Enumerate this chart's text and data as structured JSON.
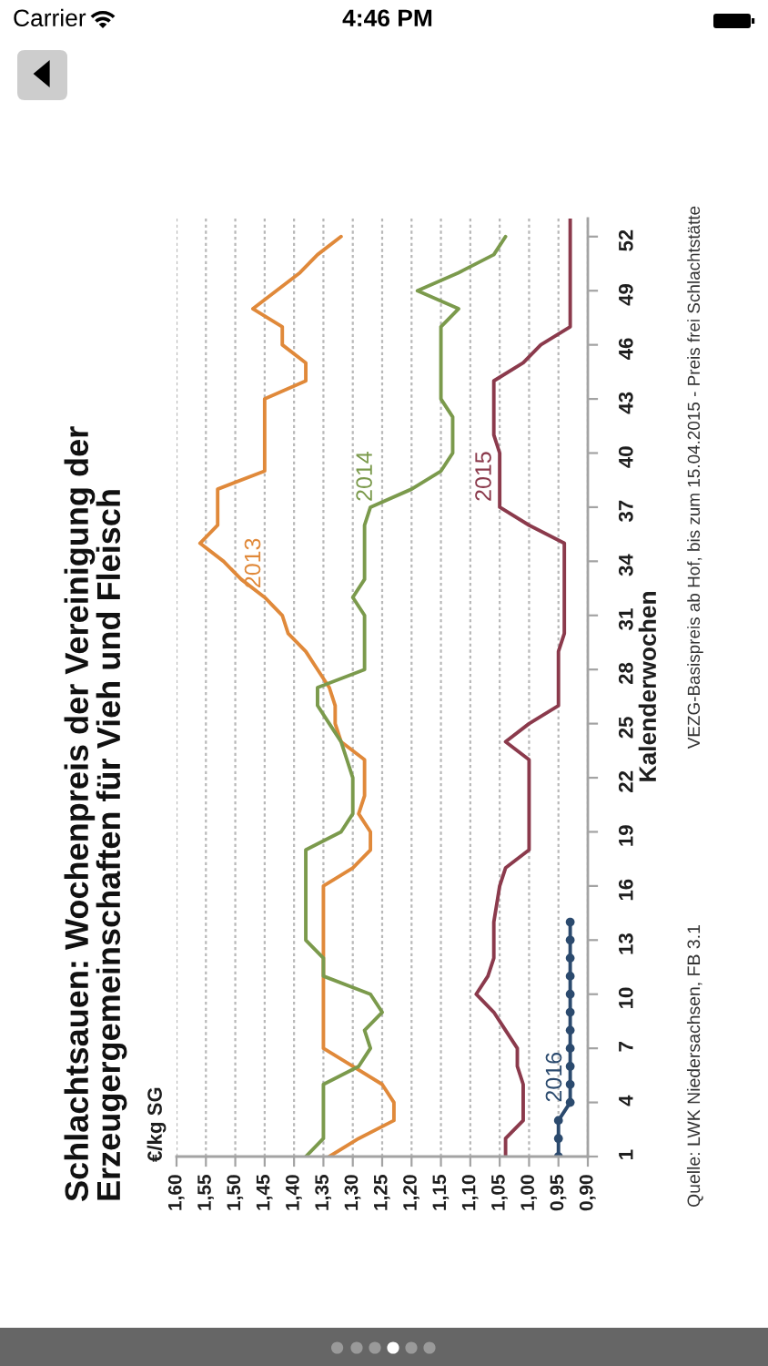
{
  "chart_data": {
    "type": "line",
    "orientation": "horizontal",
    "title": "Schlachtsauen: Wochenpreis der Vereinigung der\nErzeugergemeinschaften für Vieh und Fleisch",
    "ylabel": "Kalenderwochen",
    "annotations": [
      "Carrier",
      "4:46 PM",
      "€/kg SG",
      "Quelle: LWK Niedersachsen, FB 3.1",
      "VEZG-Basispreis ab Hof, bis zum 15.04.2015 - Preis frei Schlachtstätte"
    ],
    "x": [
      1,
      2,
      3,
      4,
      5,
      6,
      7,
      8,
      9,
      10,
      11,
      12,
      13,
      14,
      15,
      16,
      17,
      18,
      19,
      20,
      21,
      22,
      23,
      24,
      25,
      26,
      27,
      28,
      29,
      30,
      31,
      32,
      33,
      34,
      35,
      36,
      37,
      38,
      39,
      40,
      41,
      42,
      43,
      44,
      45,
      46,
      47,
      48,
      49,
      50,
      51,
      52
    ],
    "series": [
      {
        "name": "2013",
        "color": "#e0893a",
        "values": [
          1.34,
          1.29,
          1.23,
          1.23,
          1.25,
          1.3,
          1.35,
          1.35,
          1.35,
          1.35,
          1.35,
          1.35,
          1.35,
          1.35,
          1.35,
          1.35,
          1.3,
          1.27,
          1.27,
          1.29,
          1.28,
          1.28,
          1.28,
          1.32,
          1.33,
          1.33,
          1.34,
          1.36,
          1.38,
          1.41,
          1.42,
          1.45,
          1.49,
          1.52,
          1.56,
          1.53,
          1.53,
          1.53,
          1.45,
          1.45,
          1.45,
          1.45,
          1.45,
          1.38,
          1.38,
          1.42,
          1.42,
          1.47,
          1.43,
          1.39,
          1.36,
          1.32
        ]
      },
      {
        "name": "2014",
        "color": "#7b9a4c",
        "values": [
          1.38,
          1.35,
          1.35,
          1.35,
          1.35,
          1.29,
          1.27,
          1.28,
          1.25,
          1.27,
          1.35,
          1.35,
          1.38,
          1.38,
          1.38,
          1.38,
          1.38,
          1.38,
          1.32,
          1.3,
          1.3,
          1.3,
          1.31,
          1.32,
          1.34,
          1.36,
          1.36,
          1.28,
          1.28,
          1.28,
          1.28,
          1.3,
          1.28,
          1.28,
          1.28,
          1.28,
          1.27,
          1.2,
          1.15,
          1.13,
          1.13,
          1.13,
          1.15,
          1.15,
          1.15,
          1.15,
          1.15,
          1.12,
          1.19,
          1.12,
          1.06,
          1.04
        ]
      },
      {
        "name": "2015",
        "color": "#8b3a4c",
        "x": [
          1,
          2,
          3,
          4,
          5,
          6,
          7,
          8,
          9,
          10,
          11,
          12,
          13,
          14,
          15,
          16,
          17,
          18,
          19,
          20,
          21,
          22,
          23,
          24,
          25,
          26,
          27,
          28,
          29,
          30,
          31,
          32,
          33,
          34,
          35,
          36,
          37,
          38,
          39,
          40,
          41,
          42,
          43,
          44,
          45,
          46,
          47,
          48,
          49,
          50,
          51,
          52,
          53
        ],
        "values": [
          1.04,
          1.04,
          1.01,
          1.01,
          1.01,
          1.02,
          1.02,
          1.04,
          1.06,
          1.09,
          1.07,
          1.06,
          1.06,
          1.06,
          1.055,
          1.05,
          1.04,
          1.0,
          1.0,
          1.0,
          1.0,
          1.0,
          1.0,
          1.04,
          1.0,
          0.95,
          0.95,
          0.95,
          0.95,
          0.94,
          0.94,
          0.94,
          0.94,
          0.94,
          0.94,
          1.0,
          1.05,
          1.05,
          1.05,
          1.05,
          1.06,
          1.06,
          1.06,
          1.06,
          1.01,
          0.98,
          0.93,
          0.93,
          0.93,
          0.93,
          0.93,
          0.93,
          0.93
        ]
      },
      {
        "name": "2016",
        "color": "#2b4a6e",
        "marker": "circle",
        "x": [
          1,
          2,
          3,
          4,
          5,
          6,
          7,
          8,
          9,
          10,
          11,
          12,
          13,
          14
        ],
        "values": [
          0.95,
          0.95,
          0.95,
          0.93,
          0.93,
          0.93,
          0.93,
          0.93,
          0.93,
          0.93,
          0.93,
          0.93,
          0.93,
          0.93
        ]
      }
    ],
    "xlim": [
      1.6,
      0.9
    ],
    "xticks": [
      {
        "value": 1.6,
        "label": "1,60"
      },
      {
        "value": 1.55,
        "label": "1,55"
      },
      {
        "value": 1.5,
        "label": "1,50"
      },
      {
        "value": 1.45,
        "label": "1,45"
      },
      {
        "value": 1.4,
        "label": "1,40"
      },
      {
        "value": 1.35,
        "label": "1,35"
      },
      {
        "value": 1.3,
        "label": "1,30"
      },
      {
        "value": 1.25,
        "label": "1,25"
      },
      {
        "value": 1.2,
        "label": "1,20"
      },
      {
        "value": 1.15,
        "label": "1,15"
      },
      {
        "value": 1.1,
        "label": "1,10"
      },
      {
        "value": 1.05,
        "label": "1,05"
      },
      {
        "value": 1.0,
        "label": "1,00"
      },
      {
        "value": 0.95,
        "label": "0,95"
      },
      {
        "value": 0.9,
        "label": "0,90"
      }
    ],
    "ylim": [
      1,
      53
    ],
    "yticks": [
      1,
      4,
      7,
      10,
      13,
      16,
      19,
      22,
      25,
      28,
      31,
      34,
      37,
      40,
      43,
      46,
      49,
      52
    ],
    "grid": "x"
  }
}
